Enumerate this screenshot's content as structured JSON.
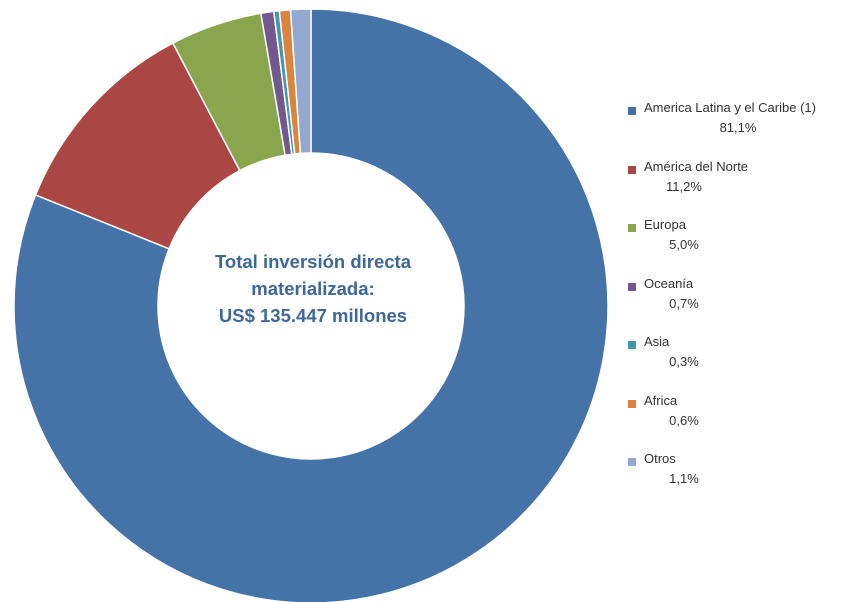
{
  "center_label": {
    "line1": "Total inversión directa",
    "line2": "materializada:",
    "line3": "US$ 135.447 millones"
  },
  "chart_data": {
    "type": "pie",
    "donut": true,
    "legend_position": "right",
    "slices": [
      {
        "label": "America Latina y el Caribe (1)",
        "value": 81.1,
        "display": "81,1%",
        "color": "#4572A7"
      },
      {
        "label": "América del Norte",
        "value": 11.2,
        "display": "11,2%",
        "color": "#AA4643"
      },
      {
        "label": "Europa",
        "value": 5.0,
        "display": "5,0%",
        "color": "#89A54E"
      },
      {
        "label": "Oceanía",
        "value": 0.7,
        "display": "0,7%",
        "color": "#71588F"
      },
      {
        "label": "Asia",
        "value": 0.3,
        "display": "0,3%",
        "color": "#4198AF"
      },
      {
        "label": "Africa",
        "value": 0.6,
        "display": "0,6%",
        "color": "#DB843D"
      },
      {
        "label": "Otros",
        "value": 1.1,
        "display": "1,1%",
        "color": "#93A9CF"
      }
    ]
  }
}
